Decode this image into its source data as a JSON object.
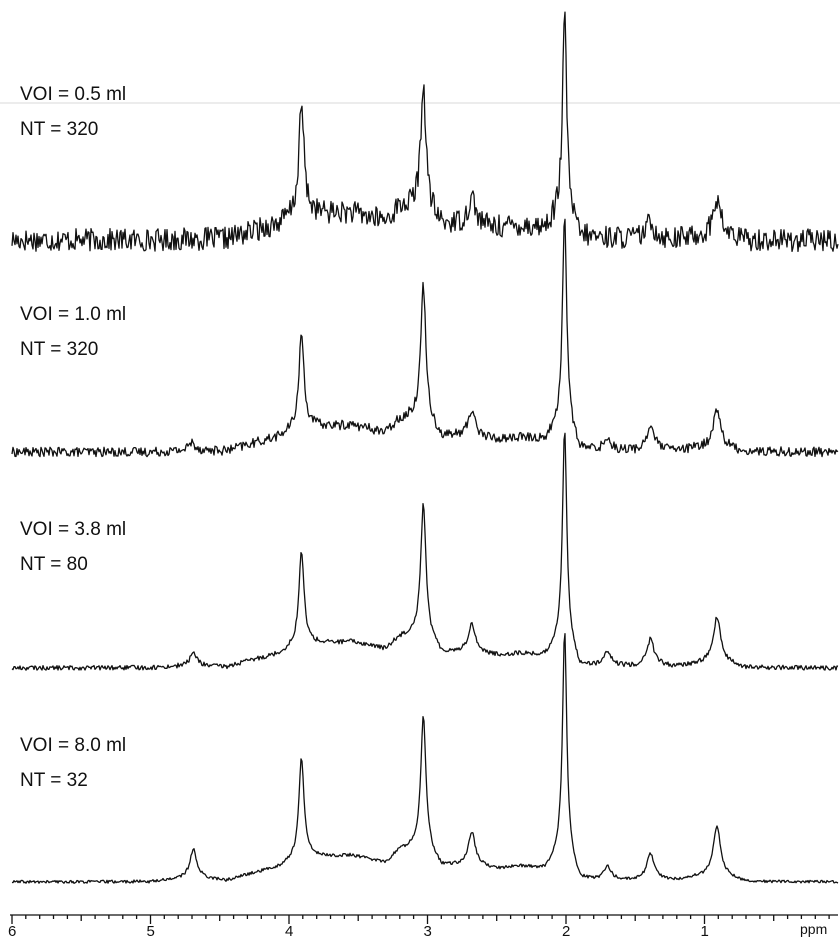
{
  "chart_data": {
    "type": "line",
    "title": "",
    "xlabel": "ppm",
    "xlim": [
      6.0,
      0.0
    ],
    "x_reversed": true,
    "xticks": [
      6,
      5,
      4,
      3,
      2,
      1
    ],
    "x_minor_tick_step": 0.1,
    "ylabel": "",
    "grid": false,
    "legend": "none",
    "stacked_vertical_offset": true,
    "peaks_ppm": [
      2.01,
      3.03,
      3.21,
      3.91,
      3.76,
      3.64,
      3.55,
      4.07,
      2.34,
      4.69,
      0.91,
      1.39,
      2.68
    ],
    "series": [
      {
        "label_line1": "VOI = 0.5 ml",
        "label_line2": "NT = 320",
        "voi_ml": 0.5,
        "nt": 320,
        "noise_level": 0.06,
        "points": [
          [
            6.0,
            0.0
          ],
          [
            5.0,
            0.0
          ],
          [
            4.7,
            0.03
          ],
          [
            4.45,
            0.05
          ],
          [
            4.3,
            0.14
          ],
          [
            4.07,
            0.3
          ],
          [
            3.91,
            0.66
          ],
          [
            3.76,
            0.5
          ],
          [
            3.64,
            0.48
          ],
          [
            3.55,
            0.45
          ],
          [
            3.3,
            0.12
          ],
          [
            3.21,
            0.58
          ],
          [
            3.03,
            0.74
          ],
          [
            2.9,
            0.05
          ],
          [
            2.68,
            0.17
          ],
          [
            2.5,
            0.13
          ],
          [
            2.34,
            0.3
          ],
          [
            2.15,
            0.33
          ],
          [
            2.01,
            1.18
          ],
          [
            1.9,
            0.09
          ],
          [
            1.7,
            0.08
          ],
          [
            1.5,
            0.06
          ],
          [
            1.39,
            0.1
          ],
          [
            1.2,
            0.04
          ],
          [
            0.91,
            0.22
          ],
          [
            0.7,
            0.0
          ],
          [
            0.0,
            -0.02
          ]
        ]
      },
      {
        "label_line1": "VOI = 1.0 ml",
        "label_line2": "NT = 320",
        "voi_ml": 1.0,
        "nt": 320,
        "noise_level": 0.025,
        "points": [
          [
            6.0,
            0.0
          ],
          [
            5.0,
            0.0
          ],
          [
            4.7,
            0.05
          ],
          [
            4.45,
            0.04
          ],
          [
            4.3,
            0.14
          ],
          [
            4.07,
            0.27
          ],
          [
            3.91,
            0.57
          ],
          [
            3.76,
            0.48
          ],
          [
            3.64,
            0.44
          ],
          [
            3.55,
            0.44
          ],
          [
            3.3,
            0.13
          ],
          [
            3.21,
            0.58
          ],
          [
            3.03,
            0.8
          ],
          [
            2.9,
            0.04
          ],
          [
            2.68,
            0.16
          ],
          [
            2.5,
            0.13
          ],
          [
            2.34,
            0.3
          ],
          [
            2.15,
            0.35
          ],
          [
            2.01,
            1.25
          ],
          [
            1.9,
            0.06
          ],
          [
            1.7,
            0.07
          ],
          [
            1.5,
            0.05
          ],
          [
            1.39,
            0.14
          ],
          [
            1.2,
            0.04
          ],
          [
            0.91,
            0.23
          ],
          [
            0.7,
            0.01
          ],
          [
            0.0,
            0.0
          ]
        ]
      },
      {
        "label_line1": "VOI = 3.8 ml",
        "label_line2": "NT = 80",
        "voi_ml": 3.8,
        "nt": 80,
        "noise_level": 0.012,
        "points": [
          [
            6.0,
            0.0
          ],
          [
            5.0,
            0.01
          ],
          [
            4.69,
            0.08
          ],
          [
            4.45,
            0.04
          ],
          [
            4.3,
            0.13
          ],
          [
            4.07,
            0.24
          ],
          [
            3.91,
            0.56
          ],
          [
            3.76,
            0.44
          ],
          [
            3.64,
            0.42
          ],
          [
            3.55,
            0.42
          ],
          [
            3.3,
            0.12
          ],
          [
            3.21,
            0.52
          ],
          [
            3.03,
            0.79
          ],
          [
            2.9,
            0.04
          ],
          [
            2.68,
            0.17
          ],
          [
            2.5,
            0.14
          ],
          [
            2.34,
            0.3
          ],
          [
            2.15,
            0.35
          ],
          [
            2.01,
            1.27
          ],
          [
            1.9,
            0.07
          ],
          [
            1.7,
            0.08
          ],
          [
            1.5,
            0.06
          ],
          [
            1.39,
            0.15
          ],
          [
            1.2,
            0.04
          ],
          [
            0.91,
            0.27
          ],
          [
            0.7,
            0.01
          ],
          [
            0.0,
            0.0
          ]
        ]
      },
      {
        "label_line1": "VOI = 8.0 ml",
        "label_line2": "NT = 32",
        "voi_ml": 8.0,
        "nt": 32,
        "noise_level": 0.008,
        "points": [
          [
            6.0,
            0.0
          ],
          [
            5.0,
            0.01
          ],
          [
            4.69,
            0.17
          ],
          [
            4.45,
            0.05
          ],
          [
            4.3,
            0.15
          ],
          [
            4.07,
            0.27
          ],
          [
            3.91,
            0.6
          ],
          [
            3.76,
            0.47
          ],
          [
            3.64,
            0.43
          ],
          [
            3.55,
            0.43
          ],
          [
            3.3,
            0.13
          ],
          [
            3.21,
            0.56
          ],
          [
            3.03,
            0.8
          ],
          [
            2.9,
            0.05
          ],
          [
            2.68,
            0.2
          ],
          [
            2.5,
            0.15
          ],
          [
            2.34,
            0.35
          ],
          [
            2.15,
            0.37
          ],
          [
            2.01,
            1.33
          ],
          [
            1.9,
            0.07
          ],
          [
            1.7,
            0.08
          ],
          [
            1.5,
            0.06
          ],
          [
            1.39,
            0.15
          ],
          [
            1.2,
            0.06
          ],
          [
            0.91,
            0.3
          ],
          [
            0.7,
            0.02
          ],
          [
            0.0,
            0.0
          ]
        ]
      }
    ]
  }
}
